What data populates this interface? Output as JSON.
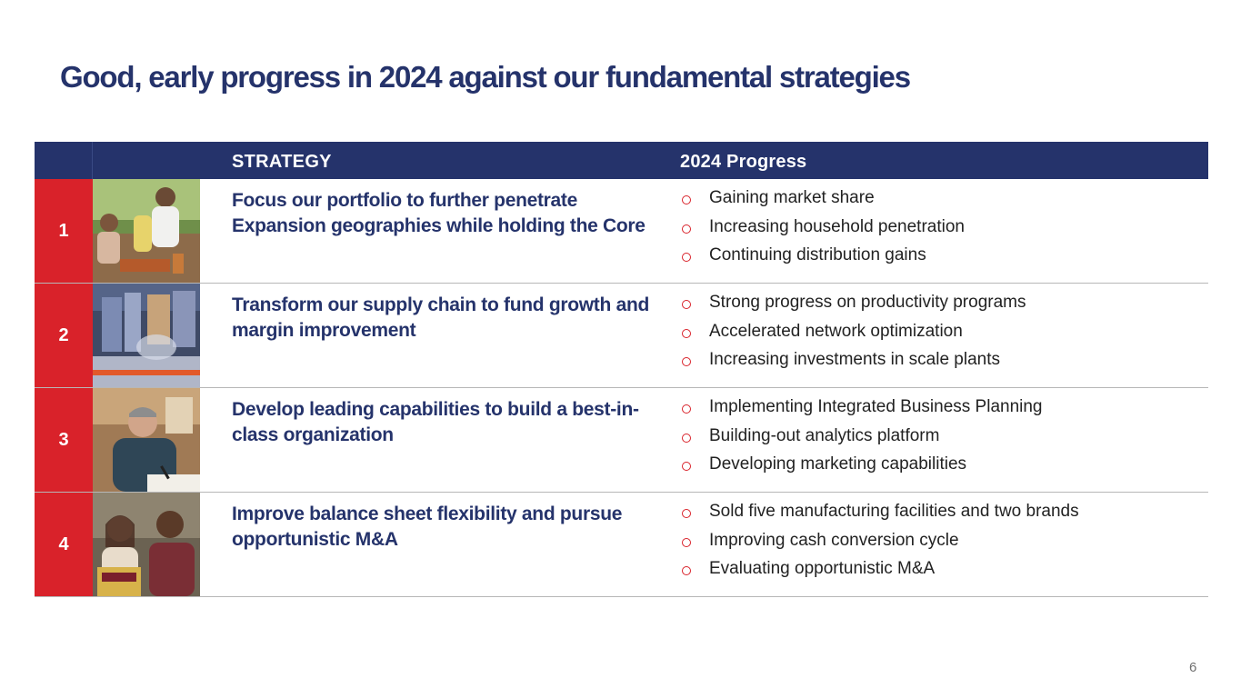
{
  "slide": {
    "title": "Good, early progress in 2024 against our fundamental strategies",
    "page_number": "6"
  },
  "table": {
    "headers": {
      "strategy": "STRATEGY",
      "progress": "2024 Progress"
    },
    "rows": [
      {
        "number": "1",
        "photo": "family-picnic-photo",
        "strategy": "Focus our portfolio to further penetrate Expansion geographies while holding the Core",
        "progress": [
          "Gaining market share",
          "Increasing household penetration",
          "Continuing distribution gains"
        ]
      },
      {
        "number": "2",
        "photo": "warehouse-conveyor-photo",
        "strategy": "Transform our supply chain to fund growth and margin improvement",
        "progress": [
          "Strong progress on productivity programs",
          "Accelerated network optimization",
          "Increasing investments in scale plants"
        ]
      },
      {
        "number": "3",
        "photo": "man-writing-at-desk-photo",
        "strategy": "Develop leading capabilities to build a best-in-class organization",
        "progress": [
          "Implementing Integrated Business Planning",
          "Building-out analytics platform",
          "Developing marketing capabilities"
        ]
      },
      {
        "number": "4",
        "photo": "two-people-with-snack-bag-photo",
        "strategy": "Improve balance sheet flexibility and pursue opportunistic M&A",
        "progress": [
          "Sold five manufacturing facilities and two brands",
          "Improving cash conversion cycle",
          "Evaluating opportunistic M&A"
        ]
      }
    ]
  },
  "colors": {
    "navy": "#25336b",
    "red": "#d9222a",
    "text": "#222222"
  }
}
